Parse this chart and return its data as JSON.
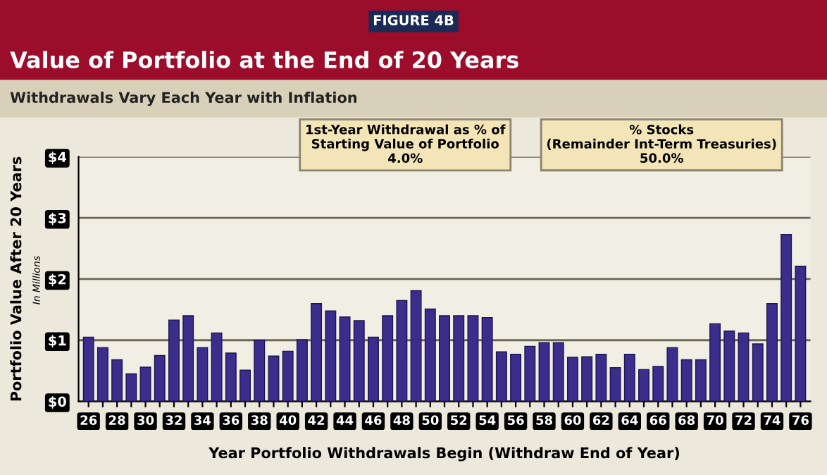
{
  "chart_data": {
    "type": "bar",
    "title": "Value of Portfolio at the End of 20 Years",
    "subtitle": "Withdrawals Vary Each Year with Inflation",
    "ylabel": "Portfolio Value After 20 Years",
    "xlabel": "Year Portfolio Withdrawals Begin (Withdraw End of Year)",
    "annotations": [
      "FIGURE 4B",
      "In Millions",
      "1st-Year Withdrawal as % of\nStarting Value of Portfolio\n4.0%",
      "% Stocks\n(Remainder Int-Term Treasuries)\n50.0%"
    ],
    "categories": [
      "26",
      null,
      "28",
      null,
      "30",
      null,
      "32",
      null,
      "34",
      null,
      "36",
      null,
      "38",
      null,
      "40",
      null,
      "42",
      null,
      "44",
      null,
      "46",
      null,
      "48",
      null,
      "50",
      null,
      "52",
      null,
      "54",
      null,
      "56",
      null,
      "58",
      null,
      "60",
      null,
      "62",
      null,
      "64",
      null,
      "66",
      null,
      "68",
      null,
      "70",
      null,
      "72",
      null,
      "74",
      null,
      "76"
    ],
    "values": [
      1.05,
      0.88,
      0.68,
      0.45,
      0.56,
      0.75,
      1.33,
      1.4,
      0.88,
      1.12,
      0.79,
      0.51,
      1.0,
      0.74,
      0.82,
      1.01,
      1.6,
      1.48,
      1.38,
      1.32,
      1.05,
      1.4,
      1.65,
      1.81,
      1.51,
      1.4,
      1.4,
      1.4,
      1.37,
      0.81,
      0.77,
      0.9,
      0.96,
      0.96,
      0.72,
      0.73,
      0.77,
      0.55,
      0.77,
      0.52,
      0.57,
      0.88,
      0.68,
      0.68,
      1.27,
      1.15,
      1.12,
      0.94,
      1.6,
      2.73,
      2.21
    ],
    "color": "#3b2d8c",
    "ylim": [
      0,
      4
    ],
    "yticks": [
      {
        "value": 0,
        "label": "$0"
      },
      {
        "value": 1,
        "label": "$1"
      },
      {
        "value": 2,
        "label": "$2"
      },
      {
        "value": 3,
        "label": "$3"
      },
      {
        "value": 4,
        "label": "$4"
      }
    ],
    "grid": "y"
  }
}
